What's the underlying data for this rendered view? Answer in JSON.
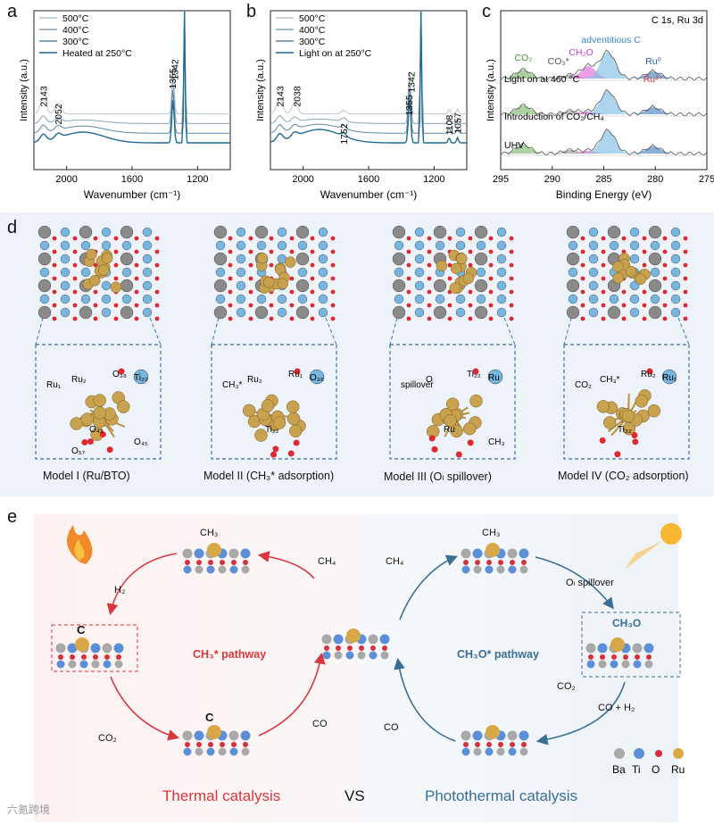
{
  "panel_labels": {
    "a": "a",
    "b": "b",
    "c": "c",
    "d": "d",
    "e": "e"
  },
  "chart_data": [
    {
      "type": "line",
      "panel": "a",
      "xlabel": "Wavenumber (cm⁻¹)",
      "ylabel": "Intensity (a.u.)",
      "xlim": [
        2200,
        1000
      ],
      "xticks": [
        "2000",
        "1600",
        "1200"
      ],
      "series": [
        {
          "name": "500°C",
          "color": "#b9c7d2"
        },
        {
          "name": "400°C",
          "color": "#8aa4b8"
        },
        {
          "name": "300°C",
          "color": "#5d87a3"
        },
        {
          "name": "Heated at 250°C",
          "color": "#1f6a93"
        }
      ],
      "peak_labels": [
        "2143",
        "2052",
        "1355",
        "1342"
      ]
    },
    {
      "type": "line",
      "panel": "b",
      "xlabel": "Wavenumber (cm⁻¹)",
      "ylabel": "Intensity (a.u.)",
      "xlim": [
        2200,
        1000
      ],
      "xticks": [
        "2000",
        "1600",
        "1200"
      ],
      "series": [
        {
          "name": "500°C",
          "color": "#b9c7d2"
        },
        {
          "name": "400°C",
          "color": "#8aa4b8"
        },
        {
          "name": "300°C",
          "color": "#5d87a3"
        },
        {
          "name": "Light on at 250°C",
          "color": "#1f6a93"
        }
      ],
      "peak_labels": [
        "2143",
        "2038",
        "1752",
        "1355",
        "1342",
        "1108",
        "1057"
      ]
    },
    {
      "type": "line",
      "panel": "c",
      "title": "C 1s, Ru 3d",
      "xlabel": "Binding Energy (eV)",
      "ylabel": "Intensity (a.u.)",
      "xlim": [
        295,
        275
      ],
      "xticks": [
        "295",
        "290",
        "285",
        "280",
        "275"
      ],
      "spectra": [
        "Light on at 460 °C",
        "Introduction of CO₂/CH₄",
        "UHV"
      ],
      "species": [
        "CO₂",
        "CO₃*",
        "CH₂O",
        "adventitious C",
        "Ru⁰",
        "Ru³⁺"
      ]
    }
  ],
  "panel_d": {
    "models": [
      {
        "caption": "Model I (Ru/BTO)",
        "labels": [
          "Ru₁",
          "Ru₂",
          "O₃₈",
          "Ti₂₂",
          "O₄₃",
          "O₄₅",
          "O₅₇"
        ]
      },
      {
        "caption": "Model II  (CH₃* adsorption)",
        "labels": [
          "CH₃*",
          "Ru₂",
          "Ru₁",
          "O₃₈",
          "Ti₂₂"
        ]
      },
      {
        "caption": "Model III  (Oₗ spillover)",
        "labels": [
          "spillover",
          "O",
          "Ti₂₂",
          "Ru",
          "Ru",
          "CH₃"
        ]
      },
      {
        "caption": "Model IV  (CO₂ adsorption)",
        "labels": [
          "CO₂",
          "CH₃*",
          "Ru₂",
          "Ru₁",
          "Ti₂₂"
        ]
      }
    ]
  },
  "panel_e": {
    "left_pathway": "CH₃* pathway",
    "right_pathway": "CH₃O* pathway",
    "left_title": "Thermal catalysis",
    "right_title": "Photothermal catalysis",
    "vs": "VS",
    "species": {
      "ch4_left": "CH₄",
      "ch4_right": "CH₄",
      "h2": "H₂",
      "co2_left": "CO₂",
      "co_left": "CO",
      "co_right": "CO",
      "co2_right": "CO₂",
      "co_h2": "CO + H₂",
      "ol_spillover": "Oₗ spillover",
      "ch3_top_left": "CH₃",
      "ch3_top_right": "CH₃",
      "c_left": "C",
      "c_bottom": "C",
      "ch3o": "CH₃O"
    },
    "legend": [
      "Ba",
      "Ti",
      "O",
      "Ru"
    ],
    "colors": {
      "thermal": "#d9363e",
      "photo": "#3a6f95",
      "Ba": "#a8a8a8",
      "Ti": "#5b8fd8",
      "O": "#d6303a",
      "Ru": "#d8a848"
    }
  },
  "watermark": "六氪跨境"
}
